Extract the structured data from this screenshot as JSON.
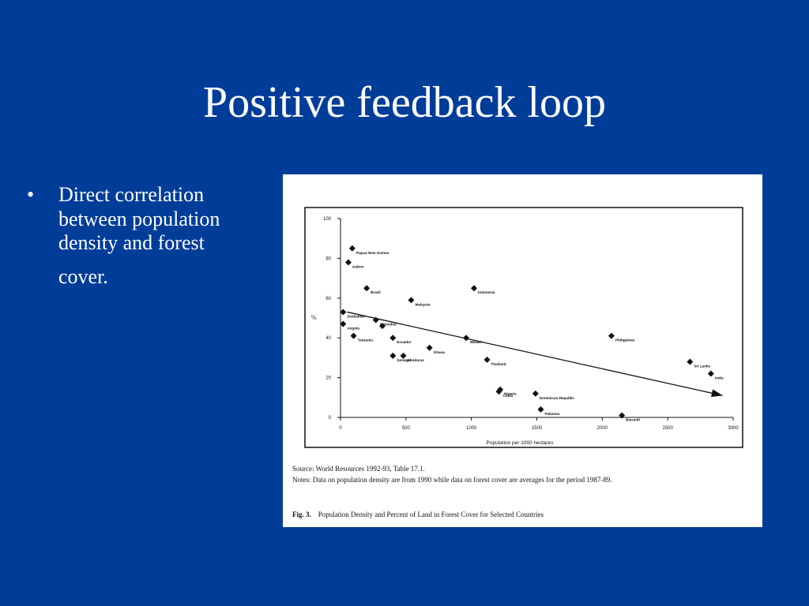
{
  "slide": {
    "title": "Positive feedback loop",
    "bullet": "•",
    "bullet_lines": [
      "Direct correlation",
      "between population",
      "density and forest",
      "cover."
    ]
  },
  "figure": {
    "source": "Source:  World Resources 1992-93, Table 17.1.",
    "notes": "Notes:  Data on population density are from 1990 while data on forest cover are averages for the period 1987-89.",
    "fig_label": "Fig. 3.",
    "fig_title": "Population Density and Percent of Land in Forest Cover for Selected Countries"
  },
  "chart_data": {
    "type": "scatter",
    "title": "",
    "xlabel": "Population per 1000 hectares",
    "ylabel": "%",
    "xlim": [
      0,
      3000
    ],
    "ylim": [
      0,
      100
    ],
    "xticks": [
      0,
      500,
      1000,
      1500,
      2000,
      2500,
      3000
    ],
    "yticks": [
      0,
      20,
      40,
      60,
      80,
      100
    ],
    "grid": false,
    "points": [
      {
        "label": "Papua New Guinea",
        "x": 90,
        "y": 85
      },
      {
        "label": "Gabon",
        "x": 60,
        "y": 78
      },
      {
        "label": "Brazil",
        "x": 200,
        "y": 65
      },
      {
        "label": "Malaysia",
        "x": 540,
        "y": 59
      },
      {
        "label": "Indonesia",
        "x": 1020,
        "y": 65
      },
      {
        "label": "Zimbabwe",
        "x": 20,
        "y": 53
      },
      {
        "label": "Colombia",
        "x": 270,
        "y": 49
      },
      {
        "label": "Angola",
        "x": 20,
        "y": 47
      },
      {
        "label": "",
        "x": 320,
        "y": 46
      },
      {
        "label": "Tanzania",
        "x": 100,
        "y": 41
      },
      {
        "label": "Ecuador",
        "x": 400,
        "y": 40
      },
      {
        "label": "Malawi",
        "x": 960,
        "y": 40
      },
      {
        "label": "Ghana",
        "x": 680,
        "y": 35
      },
      {
        "label": "Senegal",
        "x": 400,
        "y": 31
      },
      {
        "label": "Honduras",
        "x": 480,
        "y": 31
      },
      {
        "label": "Thailand",
        "x": 1120,
        "y": 29
      },
      {
        "label": "Philippines",
        "x": 2070,
        "y": 41
      },
      {
        "label": "Sri Lanka",
        "x": 2670,
        "y": 28
      },
      {
        "label": "India",
        "x": 2830,
        "y": 22
      },
      {
        "label": "Nigeria",
        "x": 1220,
        "y": 14
      },
      {
        "label": "China",
        "x": 1210,
        "y": 13
      },
      {
        "label": "Dominican Republic",
        "x": 1490,
        "y": 12
      },
      {
        "label": "Pakistan",
        "x": 1530,
        "y": 4
      },
      {
        "label": "Burundi",
        "x": 2150,
        "y": 1
      }
    ],
    "trend": {
      "from": {
        "x": 50,
        "y": 53
      },
      "to": {
        "x": 2920,
        "y": 11
      }
    }
  }
}
